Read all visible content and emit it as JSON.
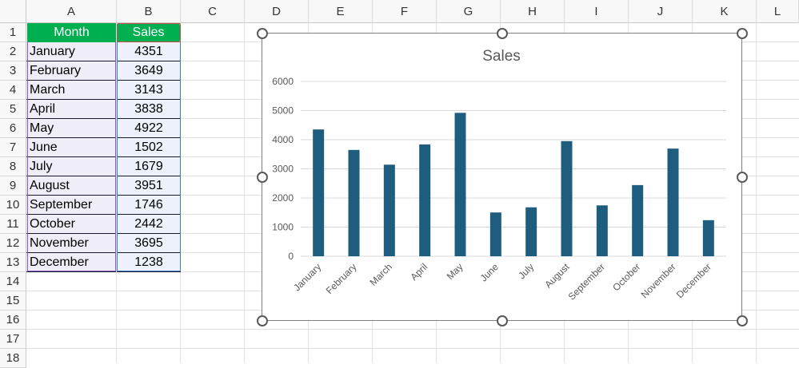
{
  "sheet": {
    "columns": [
      "A",
      "B",
      "C",
      "D",
      "E",
      "F",
      "G",
      "H",
      "I",
      "J",
      "K",
      "L"
    ],
    "rows": [
      "1",
      "2",
      "3",
      "4",
      "5",
      "6",
      "7",
      "8",
      "9",
      "10",
      "11",
      "12",
      "13",
      "14",
      "15",
      "16",
      "17",
      "18"
    ],
    "table": {
      "headers": [
        "Month",
        "Sales"
      ],
      "rows": [
        [
          "January",
          "4351"
        ],
        [
          "February",
          "3649"
        ],
        [
          "March",
          "3143"
        ],
        [
          "April",
          "3838"
        ],
        [
          "May",
          "4922"
        ],
        [
          "June",
          "1502"
        ],
        [
          "July",
          "1679"
        ],
        [
          "August",
          "3951"
        ],
        [
          "September",
          "1746"
        ],
        [
          "October",
          "2442"
        ],
        [
          "November",
          "3695"
        ],
        [
          "December",
          "1238"
        ]
      ]
    },
    "header_fill": "#00b050",
    "bar_color": "#1f5d7e"
  },
  "chart_data": {
    "type": "bar",
    "title": "Sales",
    "categories": [
      "January",
      "February",
      "March",
      "April",
      "May",
      "June",
      "July",
      "August",
      "September",
      "October",
      "November",
      "December"
    ],
    "values": [
      4351,
      3649,
      3143,
      3838,
      4922,
      1502,
      1679,
      3951,
      1746,
      2442,
      3695,
      1238
    ],
    "ylim": [
      0,
      6000
    ],
    "yticks": [
      "0",
      "1000",
      "2000",
      "3000",
      "4000",
      "5000",
      "6000"
    ],
    "grid": true,
    "xlabel": "",
    "ylabel": ""
  }
}
